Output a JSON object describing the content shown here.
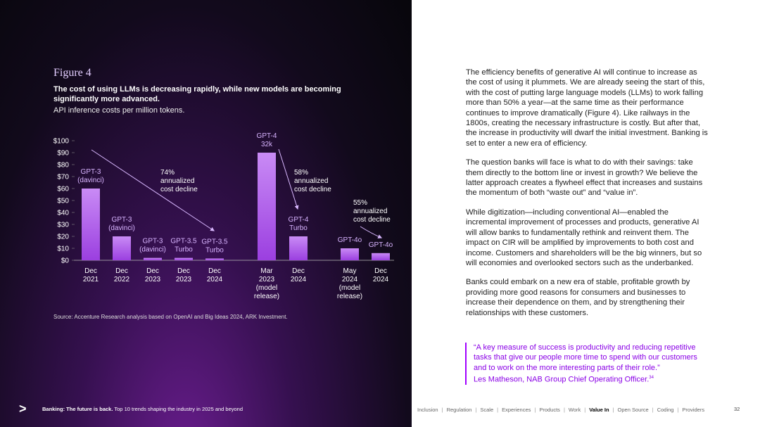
{
  "chart_data": {
    "type": "bar",
    "figure_label": "Figure 4",
    "title": "The cost of using LLMs is decreasing rapidly, while new models are becoming significantly more advanced.",
    "subtitle": "API inference costs per million tokens.",
    "categories": [
      [
        "Dec",
        "2021"
      ],
      [
        "Dec",
        "2022"
      ],
      [
        "Dec",
        "2023"
      ],
      [
        "Dec",
        "2023"
      ],
      [
        "Dec",
        "2024"
      ],
      [
        "Mar",
        "2023",
        "(model",
        "release)"
      ],
      [
        "Dec",
        "2024"
      ],
      [
        "May",
        "2024",
        "(model",
        "release)"
      ],
      [
        "Dec",
        "2024"
      ]
    ],
    "bar_labels": [
      [
        "GPT-3",
        "(davinci)"
      ],
      [
        "GPT-3",
        "(davinci)"
      ],
      [
        "GPT-3",
        "(davinci)"
      ],
      [
        "GPT-3.5",
        "Turbo"
      ],
      [
        "GPT-3.5",
        "Turbo"
      ],
      [
        "GPT-4",
        "32k"
      ],
      [
        "GPT-4",
        "Turbo"
      ],
      [
        "GPT-4o"
      ],
      [
        "GPT-4o"
      ]
    ],
    "values": [
      60,
      20,
      2,
      2,
      1.5,
      90,
      20,
      10,
      6
    ],
    "ylim": [
      0,
      100
    ],
    "yticks": [
      {
        "value": 0,
        "label": "$0"
      },
      {
        "value": 10,
        "label": "$10"
      },
      {
        "value": 20,
        "label": "$20"
      },
      {
        "value": 30,
        "label": "$30"
      },
      {
        "value": 40,
        "label": "$40"
      },
      {
        "value": 50,
        "label": "$50"
      },
      {
        "value": 60,
        "label": "$60"
      },
      {
        "value": 70,
        "label": "$70"
      },
      {
        "value": 80,
        "label": "$80"
      },
      {
        "value": 90,
        "label": "$90"
      },
      {
        "value": 100,
        "label": "$100"
      }
    ],
    "annotations": [
      [
        "74%",
        "annualized",
        "cost decline"
      ],
      [
        "58%",
        "annualized",
        "cost decline"
      ],
      [
        "55%",
        "annualized",
        "cost decline"
      ]
    ],
    "source": "Source: Accenture Research analysis based on OpenAI and Big Ideas 2024, ARK Investment."
  },
  "body": {
    "paragraphs": [
      "The efficiency benefits of generative AI will continue to increase as the cost of using it plummets. We are already seeing the start of this, with the cost of putting large language models (LLMs) to work falling more than 50% a year—at the same time as their performance continues to improve dramatically (Figure 4). Like railways in the 1800s, creating the necessary infrastructure is costly. But after that, the increase in productivity will dwarf the initial investment. Banking is set to enter a new era of efficiency.",
      "The question banks will face is what to do with their savings: take them directly to the bottom line or invest in growth? We believe the latter approach creates a flywheel effect that increases and sustains the momentum of both “waste out” and “value in”.",
      "While digitization—including conventional AI—enabled the incremental improvement of processes and products, generative AI will allow banks to fundamentally rethink and reinvent them. The impact on CIR will be amplified by improvements to both cost and income. Customers and shareholders will be the big winners, but so will economies and overlooked sectors such as the underbanked.",
      "Banks could embark on a new era of stable, profitable growth by providing more good reasons for consumers and businesses to increase their dependence on them, and by strengthening their relationships with these customers."
    ],
    "quote": "“A key measure of success is productivity and reducing repetitive tasks that give our people more time to spend with our customers and to work on the more interesting parts of their role.”",
    "attribution": "Les Matheson, NAB Group Chief Operating Officer.",
    "footnote": "34"
  },
  "footer": {
    "report_bold": "Banking: The future is back.",
    "report_rest": "Top 10 trends shaping the industry in 2025 and beyond",
    "nav": [
      "Inclusion",
      "Regulation",
      "Scale",
      "Experiences",
      "Products",
      "Work",
      "Value In",
      "Open Source",
      "Coding",
      "Providers"
    ],
    "active_index": 6,
    "page": "32"
  }
}
